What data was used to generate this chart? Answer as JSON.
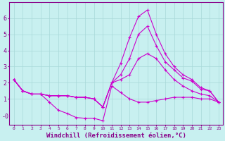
{
  "background_color": "#c8f0f0",
  "line_color": "#cc00cc",
  "grid_color": "#a8d8d8",
  "xlabel": "Windchill (Refroidissement éolien,°C)",
  "xlim": [
    -0.5,
    23.5
  ],
  "ylim": [
    -0.6,
    7.0
  ],
  "yticks": [
    1,
    2,
    3,
    4,
    5,
    6
  ],
  "ytick_labels": [
    "1",
    "2",
    "3",
    "4",
    "5",
    "6"
  ],
  "y_neg0_pos": -0.1,
  "xticks": [
    0,
    1,
    2,
    3,
    4,
    5,
    6,
    7,
    8,
    9,
    10,
    11,
    12,
    13,
    14,
    15,
    16,
    17,
    18,
    19,
    20,
    21,
    22,
    23
  ],
  "series": [
    [
      2.2,
      1.5,
      1.3,
      1.3,
      1.2,
      1.2,
      1.2,
      1.1,
      1.1,
      1.0,
      0.5,
      2.0,
      3.2,
      4.8,
      6.1,
      6.5,
      5.0,
      3.8,
      3.0,
      2.5,
      2.2,
      1.7,
      1.5,
      0.8
    ],
    [
      2.2,
      1.5,
      1.3,
      1.3,
      1.2,
      1.2,
      1.2,
      1.1,
      1.1,
      1.0,
      0.5,
      2.0,
      2.5,
      3.5,
      5.0,
      5.5,
      4.3,
      3.3,
      2.8,
      2.3,
      2.1,
      1.6,
      1.5,
      0.8
    ],
    [
      2.2,
      1.5,
      1.3,
      1.3,
      1.2,
      1.2,
      1.2,
      1.1,
      1.1,
      1.0,
      0.5,
      2.0,
      2.2,
      2.5,
      3.5,
      3.8,
      3.5,
      2.8,
      2.2,
      1.8,
      1.5,
      1.3,
      1.2,
      0.8
    ],
    [
      2.2,
      1.5,
      1.3,
      1.3,
      0.8,
      0.3,
      0.1,
      -0.15,
      -0.2,
      -0.2,
      -0.35,
      1.8,
      1.4,
      1.0,
      0.8,
      0.8,
      0.9,
      1.0,
      1.1,
      1.1,
      1.1,
      1.0,
      1.0,
      0.8
    ]
  ]
}
